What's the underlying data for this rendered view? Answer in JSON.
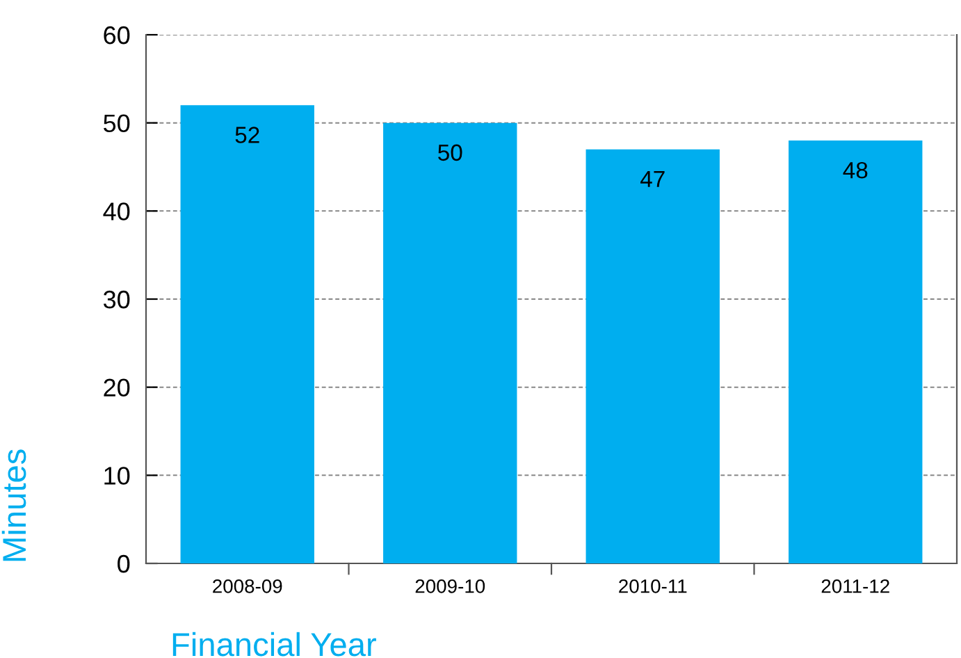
{
  "chart_data": {
    "type": "bar",
    "categories": [
      "2008-09",
      "2009-10",
      "2010-11",
      "2011-12"
    ],
    "values": [
      52,
      50,
      47,
      48
    ],
    "color": "#00aeef",
    "data_labels": true,
    "xlabel": "Financial Year",
    "ylabel": "Minutes",
    "ylim": [
      0,
      60
    ],
    "yticks": [
      0,
      10,
      20,
      30,
      40,
      50,
      60
    ],
    "grid": "y"
  }
}
